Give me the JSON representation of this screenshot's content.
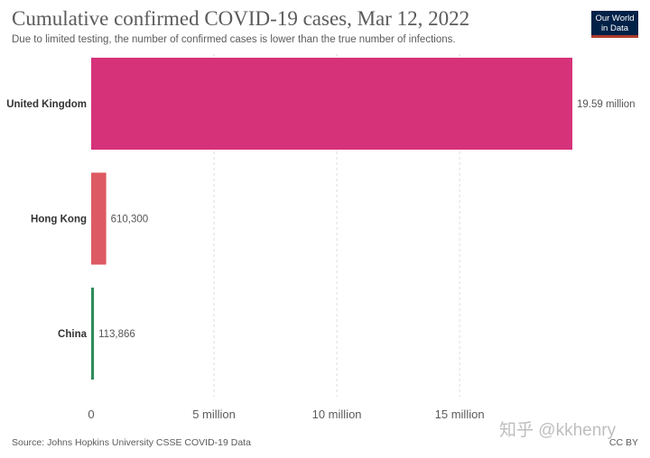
{
  "header": {
    "title": "Cumulative confirmed COVID-19 cases, Mar 12, 2022",
    "subtitle": "Due to limited testing, the number of confirmed cases is lower than the true number of infections."
  },
  "logo": {
    "line1": "Our World",
    "line2": "in Data"
  },
  "footer": {
    "source": "Source: Johns Hopkins University CSSE COVID-19 Data",
    "license": "CC BY",
    "watermark": "知乎 @kkhenry"
  },
  "chart_data": {
    "type": "bar",
    "orientation": "horizontal",
    "categories": [
      "United Kingdom",
      "Hong Kong",
      "China"
    ],
    "values": [
      19590000,
      610300,
      113866
    ],
    "value_labels": [
      "19.59 million",
      "610,300",
      "113,866"
    ],
    "colors": [
      "#d6327a",
      "#dd5a63",
      "#2e8c5a"
    ],
    "xlim": [
      0,
      19590000
    ],
    "x_ticks": [
      0,
      5000000,
      10000000,
      15000000
    ],
    "x_tick_labels": [
      "0",
      "5 million",
      "10 million",
      "15 million"
    ],
    "grid": true
  }
}
